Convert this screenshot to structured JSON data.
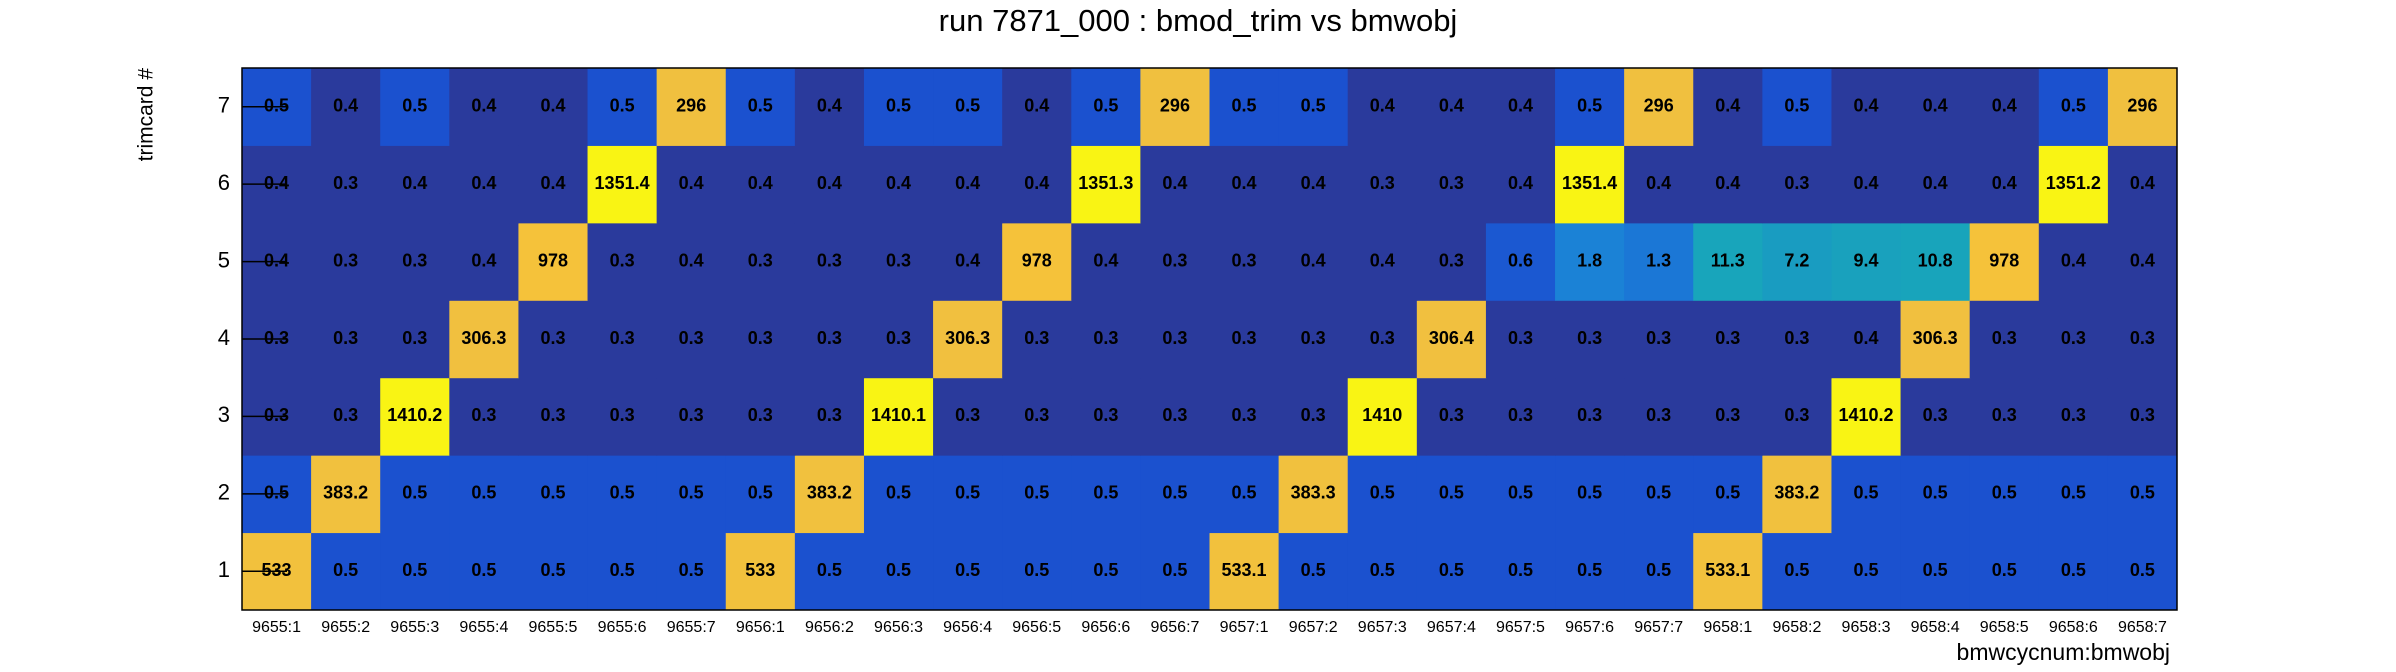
{
  "chart_data": {
    "type": "heatmap",
    "title": "run 7871_000 : bmod_trim vs bmwobj",
    "x_label": "bmwcycnum:bmwobj",
    "y_label": "trimcard #",
    "categories": [
      "9655:1",
      "9655:2",
      "9655:3",
      "9655:4",
      "9655:5",
      "9655:6",
      "9655:7",
      "9656:1",
      "9656:2",
      "9656:3",
      "9656:4",
      "9656:5",
      "9656:6",
      "9656:7",
      "9657:1",
      "9657:2",
      "9657:3",
      "9657:4",
      "9657:5",
      "9657:6",
      "9657:7",
      "9658:1",
      "9658:2",
      "9658:3",
      "9658:4",
      "9658:5",
      "9658:6",
      "9658:7"
    ],
    "y_categories": [
      "1",
      "2",
      "3",
      "4",
      "5",
      "6",
      "7"
    ],
    "values": [
      [
        533.0,
        0.5,
        0.5,
        0.5,
        0.5,
        0.5,
        0.5,
        533.0,
        0.5,
        0.5,
        0.5,
        0.5,
        0.5,
        0.5,
        533.1,
        0.5,
        0.5,
        0.5,
        0.5,
        0.5,
        0.5,
        533.1,
        0.5,
        0.5,
        0.5,
        0.5,
        0.5,
        0.5
      ],
      [
        0.5,
        383.2,
        0.5,
        0.5,
        0.5,
        0.5,
        0.5,
        0.5,
        383.2,
        0.5,
        0.5,
        0.5,
        0.5,
        0.5,
        0.5,
        383.3,
        0.5,
        0.5,
        0.5,
        0.5,
        0.5,
        0.5,
        383.2,
        0.5,
        0.5,
        0.5,
        0.5,
        0.5
      ],
      [
        0.3,
        0.3,
        1410.2,
        0.3,
        0.3,
        0.3,
        0.3,
        0.3,
        0.3,
        1410.1,
        0.3,
        0.3,
        0.3,
        0.3,
        0.3,
        0.3,
        1410.0,
        0.3,
        0.3,
        0.3,
        0.3,
        0.3,
        0.3,
        1410.2,
        0.3,
        0.3,
        0.3,
        0.3
      ],
      [
        0.3,
        0.3,
        0.3,
        306.3,
        0.3,
        0.3,
        0.3,
        0.3,
        0.3,
        0.3,
        306.3,
        0.3,
        0.3,
        0.3,
        0.3,
        0.3,
        0.3,
        306.4,
        0.3,
        0.3,
        0.3,
        0.3,
        0.3,
        0.4,
        306.3,
        0.3,
        0.3,
        0.3
      ],
      [
        0.4,
        0.3,
        0.3,
        0.4,
        978.0,
        0.3,
        0.4,
        0.3,
        0.3,
        0.3,
        0.4,
        978.0,
        0.4,
        0.3,
        0.3,
        0.4,
        0.4,
        0.3,
        0.6,
        1.8,
        1.3,
        11.3,
        7.2,
        9.4,
        10.8,
        978.0,
        0.4,
        0.4
      ],
      [
        0.4,
        0.3,
        0.4,
        0.4,
        0.4,
        1351.4,
        0.4,
        0.4,
        0.4,
        0.4,
        0.4,
        0.4,
        1351.3,
        0.4,
        0.4,
        0.4,
        0.3,
        0.3,
        0.4,
        1351.4,
        0.4,
        0.4,
        0.3,
        0.4,
        0.4,
        0.4,
        1351.2,
        0.4
      ],
      [
        0.5,
        0.4,
        0.5,
        0.4,
        0.4,
        0.5,
        296.0,
        0.5,
        0.4,
        0.5,
        0.5,
        0.4,
        0.5,
        296.0,
        0.5,
        0.5,
        0.4,
        0.4,
        0.4,
        0.5,
        296.0,
        0.4,
        0.5,
        0.4,
        0.4,
        0.4,
        0.5,
        296.0
      ]
    ],
    "zlog": true,
    "palette": [
      {
        "at": 0,
        "color": "#2a3a9c"
      },
      {
        "at": 0.05,
        "color": "#2a3a9c"
      },
      {
        "at": 0.055,
        "color": "#1b4fcf"
      },
      {
        "at": 0.2,
        "color": "#1b80d8"
      },
      {
        "at": 0.45,
        "color": "#18a8b8"
      },
      {
        "at": 0.8,
        "color": "#f0c040"
      },
      {
        "at": 0.97,
        "color": "#f5c23a"
      },
      {
        "at": 0.99,
        "color": "#f9f414"
      },
      {
        "at": 1,
        "color": "#f9f414"
      }
    ]
  }
}
